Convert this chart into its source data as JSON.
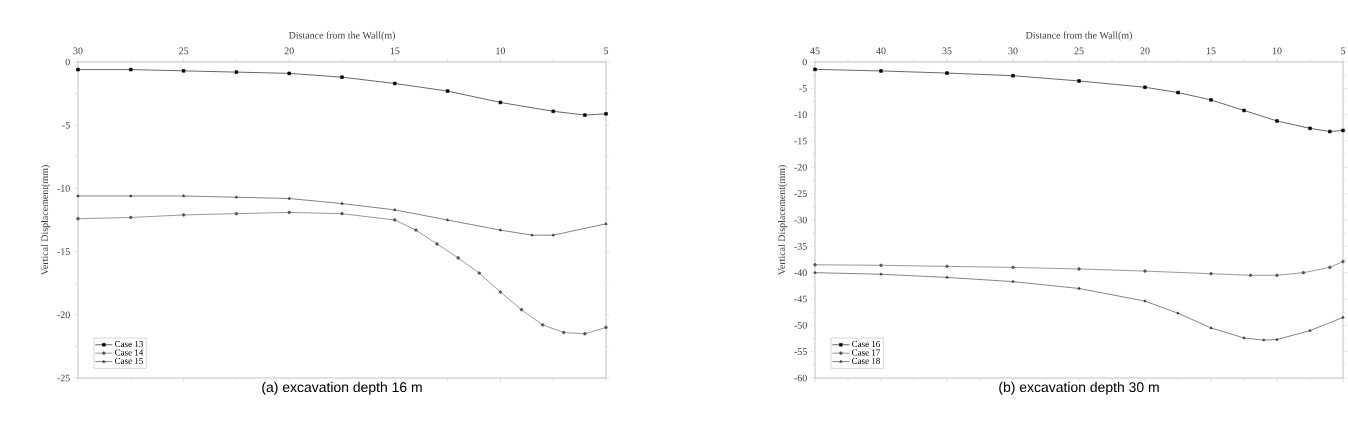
{
  "chart_data": [
    {
      "type": "line",
      "title": "(a) excavation depth 16 m",
      "xlabel": "Distance from the Wall(m)",
      "ylabel": "Vertical Displacement(mm)",
      "xlim": [
        30,
        5
      ],
      "xticks": [
        30,
        25,
        20,
        15,
        10,
        5
      ],
      "ylim": [
        -25,
        0
      ],
      "yticks": [
        -25,
        -20,
        -15,
        -10,
        -5,
        0
      ],
      "legend": "bottom left",
      "grid": false,
      "series": [
        {
          "name": "Case 13",
          "color": "#000000",
          "marker": "square",
          "x": [
            30,
            27.5,
            25,
            22.5,
            20,
            17.5,
            15,
            12.5,
            10,
            7.5,
            6,
            5
          ],
          "values": [
            -0.6,
            -0.6,
            -0.7,
            -0.8,
            -0.9,
            -1.2,
            -1.7,
            -2.3,
            -3.2,
            -3.9,
            -4.2,
            -4.1
          ]
        },
        {
          "name": "Case 14",
          "color": "#555555",
          "marker": "circle",
          "x": [
            30,
            27.5,
            25,
            22.5,
            20,
            17.5,
            15,
            14,
            13,
            12,
            11,
            10,
            9,
            8,
            7,
            6,
            5
          ],
          "values": [
            -12.4,
            -12.3,
            -12.1,
            -12.0,
            -11.9,
            -12.0,
            -12.5,
            -13.3,
            -14.4,
            -15.5,
            -16.7,
            -18.2,
            -19.6,
            -20.8,
            -21.4,
            -21.5,
            -21.0
          ]
        },
        {
          "name": "Case 15",
          "color": "#333333",
          "marker": "triangle",
          "x": [
            30,
            27.5,
            25,
            22.5,
            20,
            17.5,
            15,
            12.5,
            10,
            8.5,
            7.5,
            5
          ],
          "values": [
            -10.6,
            -10.6,
            -10.6,
            -10.7,
            -10.8,
            -11.2,
            -11.7,
            -12.5,
            -13.3,
            -13.7,
            -13.7,
            -12.8
          ]
        }
      ]
    },
    {
      "type": "line",
      "title": "(b) excavation depth 30 m",
      "xlabel": "Distance from the Wall(m)",
      "ylabel": "Vertical Displacement(mm)",
      "xlim": [
        45,
        5
      ],
      "xticks": [
        45,
        40,
        35,
        30,
        25,
        20,
        15,
        10,
        5
      ],
      "ylim": [
        -60,
        0
      ],
      "yticks": [
        -60,
        -55,
        -50,
        -45,
        -40,
        -35,
        -30,
        -25,
        -20,
        -15,
        -10,
        -5,
        0
      ],
      "legend": "bottom left",
      "grid": false,
      "series": [
        {
          "name": "Case 16",
          "color": "#000000",
          "marker": "square",
          "x": [
            45,
            40,
            35,
            30,
            25,
            20,
            17.5,
            15,
            12.5,
            10,
            7.5,
            6,
            5
          ],
          "values": [
            -1.4,
            -1.7,
            -2.1,
            -2.6,
            -3.6,
            -4.8,
            -5.8,
            -7.2,
            -9.2,
            -11.2,
            -12.6,
            -13.2,
            -13.0
          ]
        },
        {
          "name": "Case 17",
          "color": "#555555",
          "marker": "circle",
          "x": [
            45,
            40,
            35,
            30,
            25,
            20,
            15,
            12,
            10,
            8,
            6,
            5
          ],
          "values": [
            -38.5,
            -38.6,
            -38.8,
            -39.0,
            -39.3,
            -39.7,
            -40.2,
            -40.5,
            -40.5,
            -40.0,
            -39.0,
            -37.9
          ]
        },
        {
          "name": "Case 18",
          "color": "#333333",
          "marker": "triangle",
          "x": [
            45,
            40,
            35,
            30,
            25,
            20,
            17.5,
            15,
            12.5,
            11,
            10,
            7.5,
            5
          ],
          "values": [
            -40.0,
            -40.3,
            -40.9,
            -41.7,
            -43.0,
            -45.4,
            -47.7,
            -50.5,
            -52.4,
            -52.8,
            -52.7,
            -51.0,
            -48.5
          ]
        }
      ]
    }
  ]
}
